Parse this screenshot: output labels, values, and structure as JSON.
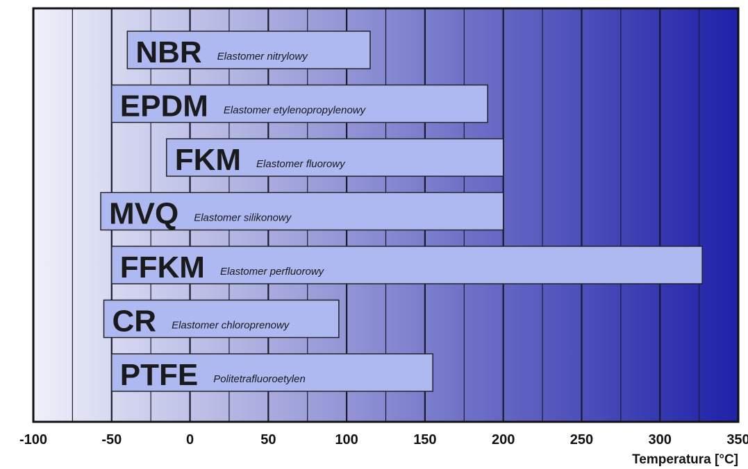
{
  "chart_data": {
    "type": "bar",
    "orientation": "horizontal",
    "xlabel": "Temperatura [°C]",
    "xlim": [
      -100,
      350
    ],
    "xticks": [
      -100,
      -50,
      0,
      50,
      100,
      150,
      200,
      250,
      300,
      350
    ],
    "grid": true,
    "series": [
      {
        "name": "NBR",
        "description": "Elastomer nitrylowy",
        "min": -40,
        "max": 115
      },
      {
        "name": "EPDM",
        "description": "Elastomer etylenopropylenowy",
        "min": -50,
        "max": 190
      },
      {
        "name": "FKM",
        "description": "Elastomer fluorowy",
        "min": -15,
        "max": 200
      },
      {
        "name": "MVQ",
        "description": "Elastomer silikonowy",
        "min": -57,
        "max": 200
      },
      {
        "name": "FFKM",
        "description": "Elastomer perfluorowy",
        "min": -50,
        "max": 327
      },
      {
        "name": "CR",
        "description": "Elastomer chloroprenowy",
        "min": -55,
        "max": 95
      },
      {
        "name": "PTFE",
        "description": "Politetrafluoroetylen",
        "min": -50,
        "max": 155
      }
    ],
    "colors": {
      "background_start": "#eef0fa",
      "background_end": "#1f21a8",
      "bar_fill": "#aeb8f1",
      "bar_stroke": "#222222",
      "grid_line": "#1a1a2a"
    }
  }
}
